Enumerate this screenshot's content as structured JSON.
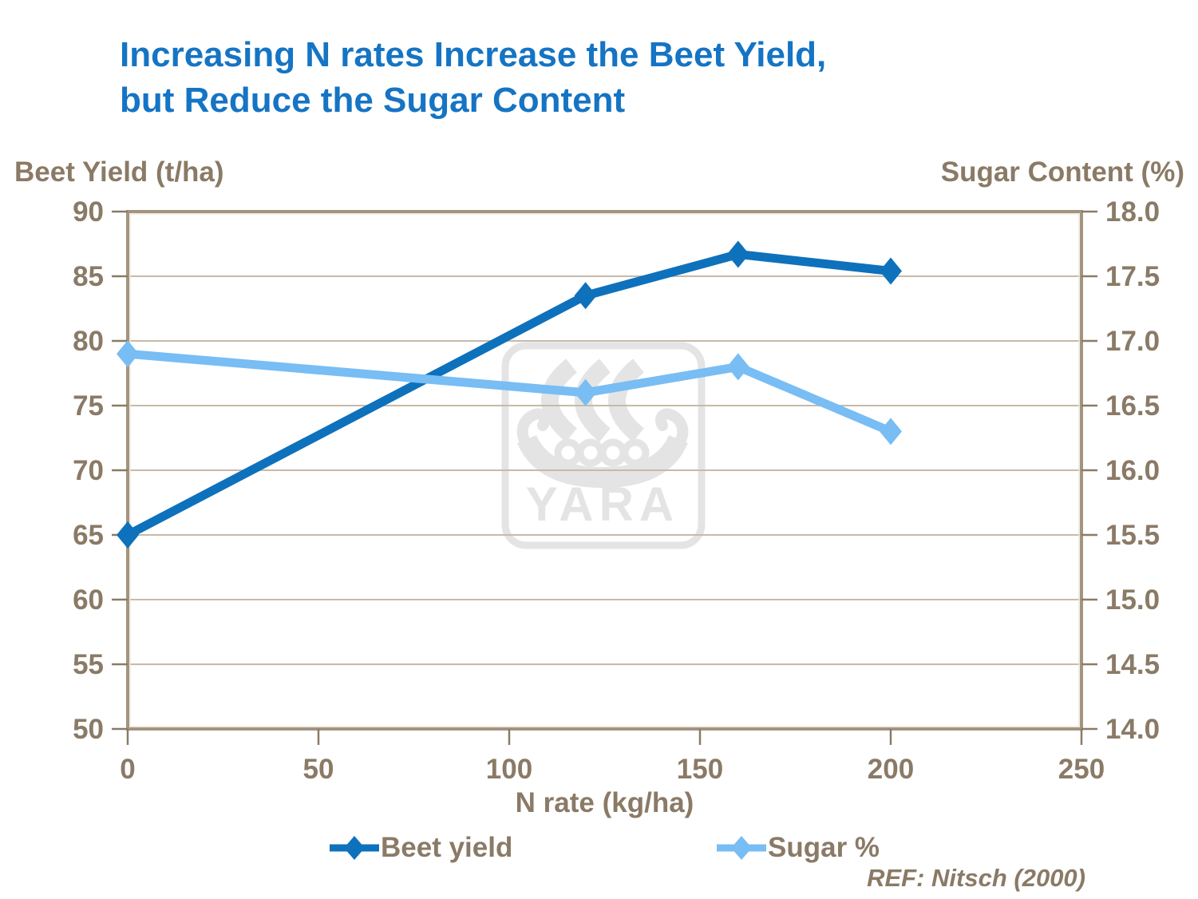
{
  "title": {
    "line1": "Increasing N rates Increase the Beet Yield,",
    "line2": "but Reduce the Sugar Content"
  },
  "reference": "REF: Nitsch (2000)",
  "watermark": "YARA",
  "colors": {
    "title_blue": "#1574C4",
    "beet_blue": "#0E71BC",
    "sugar_blue": "#78BDF4",
    "text_taupe": "#8A7A66",
    "gridline": "#C6BAAA",
    "plot_border": "#A3947F",
    "plot_border_highlight": "#EEE8DD",
    "tick": "#8A7B66",
    "watermark_gray": "#E4E4E4",
    "background": "#FFFFFF"
  },
  "chart_data": {
    "type": "line",
    "title": "Increasing N rates Increase the Beet Yield, but Reduce the Sugar Content",
    "x": [
      0,
      120,
      160,
      200
    ],
    "series": [
      {
        "name": "Beet yield",
        "axis": "left",
        "color": "#0E71BC",
        "values": [
          65,
          83.5,
          86.7,
          85.4
        ]
      },
      {
        "name": "Sugar %",
        "axis": "right",
        "color": "#78BDF4",
        "values": [
          16.9,
          16.6,
          16.8,
          16.3
        ]
      }
    ],
    "xlabel": "N rate (kg/ha)",
    "left_ylabel": "Beet Yield (t/ha)",
    "right_ylabel": "Sugar Content (%)",
    "xlim": [
      0,
      250
    ],
    "left_ylim": [
      50,
      90
    ],
    "right_ylim": [
      14,
      18
    ],
    "x_ticks": [
      "0",
      "50",
      "100",
      "150",
      "200",
      "250"
    ],
    "left_ticks": [
      "90",
      "85",
      "80",
      "75",
      "70",
      "65",
      "60",
      "55",
      "50"
    ],
    "right_ticks": [
      "18.0",
      "17.5",
      "17.0",
      "16.5",
      "16.0",
      "15.5",
      "15.0",
      "14.5",
      "14.0"
    ],
    "grid": true,
    "legend_position": "bottom",
    "marker": "diamond"
  }
}
